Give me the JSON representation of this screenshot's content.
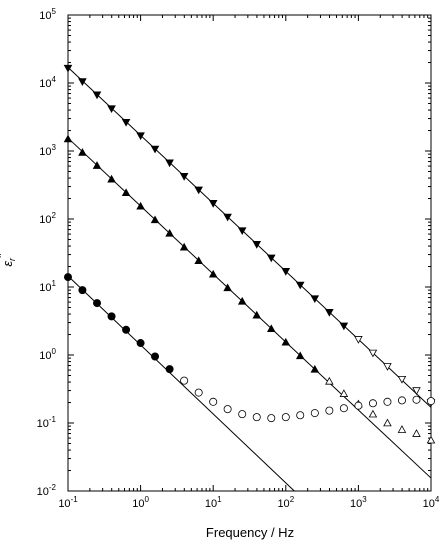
{
  "chart_data": {
    "type": "scatter",
    "title": "",
    "xlabel": "Frequency / Hz",
    "ylabel": "εr\"",
    "ylabel_main": "ε",
    "ylabel_sub": "r",
    "ylabel_sup": "\"",
    "xscale": "log",
    "yscale": "log",
    "xlim": [
      0.1,
      10000
    ],
    "ylim": [
      0.01,
      100000
    ],
    "grid": false,
    "legend": "none",
    "x_ticks": [
      {
        "base": "10",
        "exp": "-1",
        "value": 0.1
      },
      {
        "base": "10",
        "exp": "0",
        "value": 1
      },
      {
        "base": "10",
        "exp": "1",
        "value": 10
      },
      {
        "base": "10",
        "exp": "2",
        "value": 100
      },
      {
        "base": "10",
        "exp": "3",
        "value": 1000
      },
      {
        "base": "10",
        "exp": "4",
        "value": 10000
      }
    ],
    "y_ticks": [
      {
        "base": "10",
        "exp": "-2",
        "value": 0.01
      },
      {
        "base": "10",
        "exp": "-1",
        "value": 0.1
      },
      {
        "base": "10",
        "exp": "0",
        "value": 1
      },
      {
        "base": "10",
        "exp": "1",
        "value": 10
      },
      {
        "base": "10",
        "exp": "2",
        "value": 100
      },
      {
        "base": "10",
        "exp": "3",
        "value": 1000
      },
      {
        "base": "10",
        "exp": "4",
        "value": 10000
      },
      {
        "base": "10",
        "exp": "5",
        "value": 100000
      }
    ],
    "fit_lines": [
      {
        "x": [
          0.1,
          10000
        ],
        "y": [
          17000,
          0.17
        ]
      },
      {
        "x": [
          0.1,
          10000
        ],
        "y": [
          1550,
          0.0155
        ]
      },
      {
        "x": [
          0.1,
          131
        ],
        "y": [
          14.5,
          0.01
        ]
      }
    ],
    "series": [
      {
        "marker": "triangle-down",
        "fill": "filled",
        "x": [
          0.1,
          0.158,
          0.251,
          0.398,
          0.631,
          1.0,
          1.58,
          2.51,
          3.98,
          6.31,
          10.0,
          15.8,
          25.1,
          39.8,
          63.1,
          100,
          158,
          251,
          398,
          631
        ],
        "y": [
          16500,
          10500,
          6700,
          4200,
          2650,
          1680,
          1070,
          670,
          425,
          268,
          170,
          107,
          67.5,
          42.5,
          26.8,
          17.0,
          10.7,
          6.75,
          4.25,
          2.68
        ]
      },
      {
        "marker": "triangle-down",
        "fill": "open",
        "x": [
          1000,
          1585,
          2512,
          3981,
          6310,
          10000
        ],
        "y": [
          1.7,
          1.07,
          0.68,
          0.44,
          0.3,
          0.2
        ]
      },
      {
        "marker": "triangle-up",
        "fill": "filled",
        "x": [
          0.1,
          0.158,
          0.251,
          0.398,
          0.631,
          1.0,
          1.58,
          2.51,
          3.98,
          6.31,
          10.0,
          15.8,
          25.1,
          39.8,
          63.1,
          100,
          158,
          251
        ],
        "y": [
          1500,
          950,
          610,
          385,
          243,
          154,
          97,
          61.5,
          38.5,
          24.3,
          15.4,
          9.7,
          6.15,
          3.85,
          2.43,
          1.54,
          0.97,
          0.615
        ]
      },
      {
        "marker": "triangle-up",
        "fill": "open",
        "x": [
          398,
          631,
          1000,
          1585,
          2512,
          3981,
          6310,
          10000
        ],
        "y": [
          0.41,
          0.27,
          0.19,
          0.135,
          0.1,
          0.08,
          0.07,
          0.056
        ]
      },
      {
        "marker": "circle",
        "fill": "filled",
        "x": [
          0.1,
          0.158,
          0.251,
          0.398,
          0.631,
          1.0,
          1.58,
          2.51
        ],
        "y": [
          14.0,
          9.0,
          5.8,
          3.7,
          2.35,
          1.5,
          0.95,
          0.62
        ]
      },
      {
        "marker": "circle",
        "fill": "open",
        "x": [
          3.98,
          6.31,
          10.0,
          15.8,
          25.1,
          39.8,
          63.1,
          100,
          158,
          251,
          398,
          631,
          1000,
          1585,
          2512,
          3981,
          6310,
          10000
        ],
        "y": [
          0.42,
          0.28,
          0.205,
          0.16,
          0.135,
          0.122,
          0.118,
          0.122,
          0.13,
          0.14,
          0.152,
          0.165,
          0.18,
          0.195,
          0.205,
          0.215,
          0.22,
          0.21
        ]
      }
    ]
  }
}
